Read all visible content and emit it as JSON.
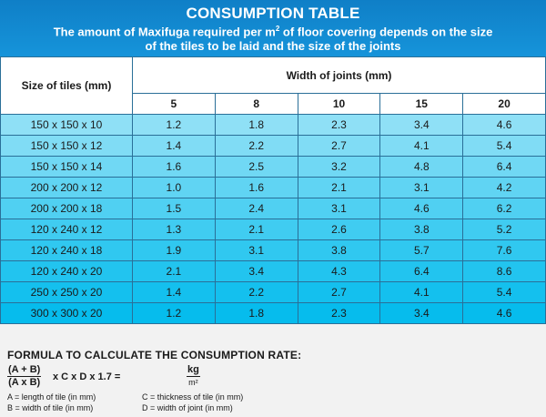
{
  "banner": {
    "title": "CONSUMPTION TABLE",
    "subtitle_line1_pre": "The amount of Maxifuga required per m",
    "subtitle_sup": "2",
    "subtitle_line1_post": " of floor covering depends on the size",
    "subtitle_line2": "of the tiles to be laid and the size of the joints"
  },
  "table": {
    "size_header": "Size of tiles (mm)",
    "joints_header": "Width of joints (mm)",
    "joint_widths": [
      "5",
      "8",
      "10",
      "15",
      "20"
    ],
    "rows": [
      {
        "size": "150 x 150 x 10",
        "values": [
          "1.2",
          "1.8",
          "2.3",
          "3.4",
          "4.6"
        ]
      },
      {
        "size": "150 x 150 x 12",
        "values": [
          "1.4",
          "2.2",
          "2.7",
          "4.1",
          "5.4"
        ]
      },
      {
        "size": "150 x 150 x 14",
        "values": [
          "1.6",
          "2.5",
          "3.2",
          "4.8",
          "6.4"
        ]
      },
      {
        "size": "200 x 200 x 12",
        "values": [
          "1.0",
          "1.6",
          "2.1",
          "3.1",
          "4.2"
        ]
      },
      {
        "size": "200 x 200 x 18",
        "values": [
          "1.5",
          "2.4",
          "3.1",
          "4.6",
          "6.2"
        ]
      },
      {
        "size": "120 x 240 x 12",
        "values": [
          "1.3",
          "2.1",
          "2.6",
          "3.8",
          "5.2"
        ]
      },
      {
        "size": "120 x 240 x 18",
        "values": [
          "1.9",
          "3.1",
          "3.8",
          "5.7",
          "7.6"
        ]
      },
      {
        "size": "120 x 240 x 20",
        "values": [
          "2.1",
          "3.4",
          "4.3",
          "6.4",
          "8.6"
        ]
      },
      {
        "size": "250 x 250 x 20",
        "values": [
          "1.4",
          "2.2",
          "2.7",
          "4.1",
          "5.4"
        ]
      },
      {
        "size": "300 x 300 x 20",
        "values": [
          "1.2",
          "1.8",
          "2.3",
          "3.4",
          "4.6"
        ]
      }
    ],
    "row_colors": [
      "#8fe0f6",
      "#80dcf5",
      "#70d8f4",
      "#60d4f3",
      "#50d0f2",
      "#40ccf1",
      "#30c8f0",
      "#22c4ef",
      "#14c0ee",
      "#06bced"
    ]
  },
  "formula": {
    "heading": "FORMULA TO CALCULATE THE CONSUMPTION RATE:",
    "numerator": "(A + B)",
    "denominator": "(A x B)",
    "middle": "x C x D x 1.7 =",
    "unit_numerator": "kg",
    "unit_denominator": "m²",
    "legend": {
      "a": "A = length of tile (in mm)",
      "b": "B = width of tile (in mm)",
      "c": "C = thickness of tile (in mm)",
      "d": "D = width of joint (in mm)"
    }
  },
  "colors": {
    "banner": "#1694da",
    "border": "#2a6f98"
  }
}
